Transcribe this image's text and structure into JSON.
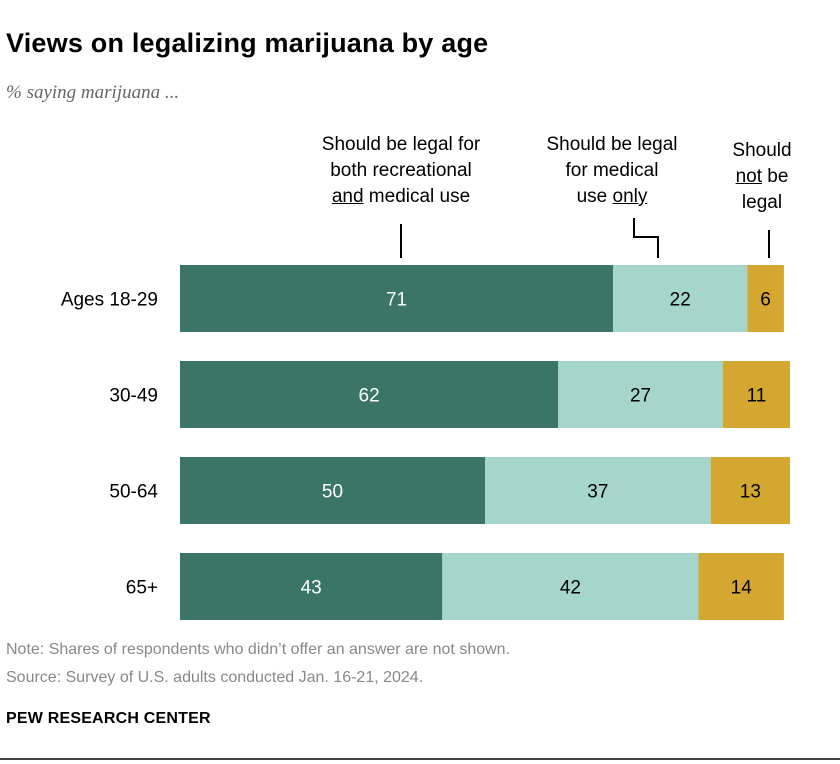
{
  "header": {
    "title": "Views on legalizing marijuana by age",
    "subtitle": "% saying marijuana ..."
  },
  "legend": {
    "s0": {
      "pre": "Should be legal for",
      "mid": "both recreational",
      "u": "and",
      "post": " medical use"
    },
    "s1": {
      "pre": "Should be legal",
      "mid": "for medical",
      "pre2": "use ",
      "u": "only"
    },
    "s2": {
      "pre": "Should",
      "u": "not",
      "post": " be",
      "tail": "legal"
    }
  },
  "chart_data": {
    "type": "bar",
    "orientation": "horizontal",
    "stacked": true,
    "title": "Views on legalizing marijuana by age",
    "subtitle": "% saying marijuana ...",
    "categories": [
      "Ages 18-29",
      "30-49",
      "50-64",
      "65+"
    ],
    "series": [
      {
        "name": "Should be legal for both recreational and medical use",
        "values": [
          71,
          62,
          50,
          43
        ],
        "color": "#3a7567",
        "label_color": "#ffffff"
      },
      {
        "name": "Should be legal for medical use only",
        "values": [
          22,
          27,
          37,
          42
        ],
        "color": "#a5d5cb",
        "label_color": "#000000"
      },
      {
        "name": "Should not be legal",
        "values": [
          6,
          11,
          13,
          14
        ],
        "color": "#d4a731",
        "label_color": "#000000"
      }
    ],
    "xlim": [
      0,
      100
    ]
  },
  "footer": {
    "note": "Note: Shares of respondents who didn’t offer an answer are not shown.",
    "source": "Source: Survey of U.S. adults conducted Jan. 16-21, 2024.",
    "brand": "PEW RESEARCH CENTER"
  }
}
